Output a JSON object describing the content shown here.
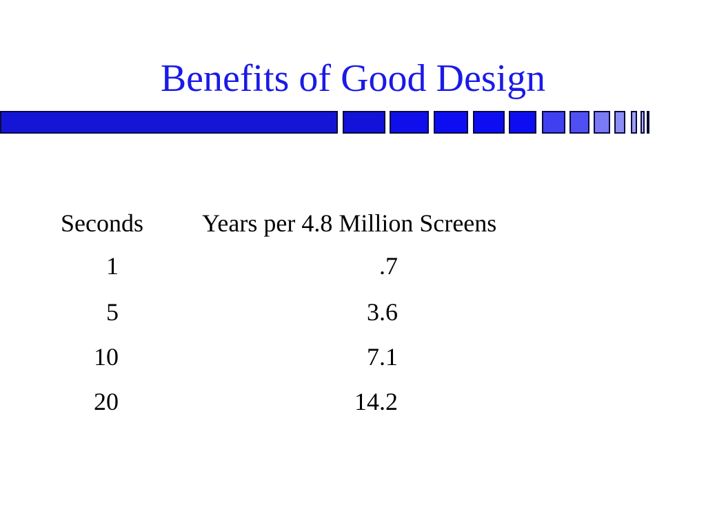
{
  "slide": {
    "title": "Benefits of Good Design",
    "colors": {
      "title": "#1a1ae6",
      "bar_primary": "#1515d6",
      "bar_outline": "#0a0a3a",
      "text": "#000000"
    }
  },
  "table": {
    "headers": {
      "seconds": "Seconds",
      "years": "Years per 4.8 Million Screens"
    },
    "rows": [
      {
        "seconds": "1",
        "years": ".7"
      },
      {
        "seconds": "5",
        "years": "3.6"
      },
      {
        "seconds": "10",
        "years": "7.1"
      },
      {
        "seconds": "20",
        "years": "14.2"
      }
    ]
  }
}
